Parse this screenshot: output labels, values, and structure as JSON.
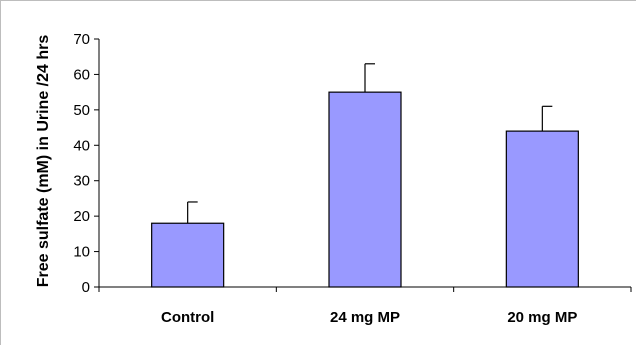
{
  "chart_data": {
    "type": "bar",
    "title": "",
    "xlabel": "",
    "ylabel": "Free sulfate (mM) in Urine /24 hrs",
    "categories": [
      "Control",
      "24 mg MP",
      "20 mg MP"
    ],
    "values": [
      18,
      55,
      44
    ],
    "error_upper": [
      6,
      8,
      7
    ],
    "ylim": [
      0,
      70
    ],
    "yticks": [
      0,
      10,
      20,
      30,
      40,
      50,
      60,
      70
    ],
    "ytick_labels": [
      "0",
      "10",
      "20",
      "30",
      "40",
      "50",
      "60",
      "70"
    ],
    "grid": false,
    "legend": "none",
    "bar_color": "#9999ff",
    "bar_edge_color": "#000000"
  }
}
